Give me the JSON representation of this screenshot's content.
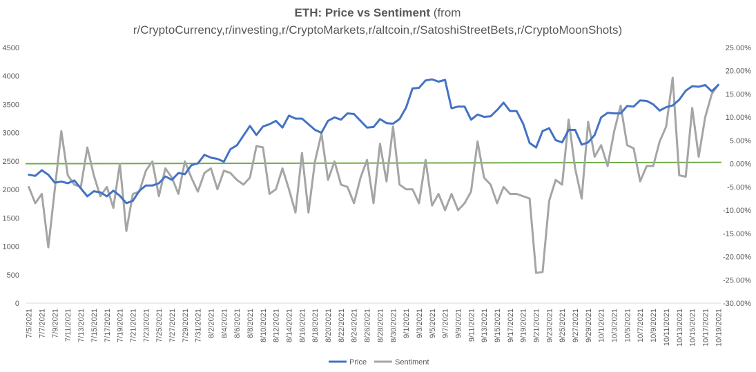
{
  "chart_data": {
    "type": "line",
    "title_bold": "ETH: Price vs Sentiment",
    "title_rest": " (from",
    "title_line2": "r/CryptoCurrency,r/investing,r/CryptoMarkets,r/altcoin,r/SatoshiStreetBets,r/CryptoMoonShots)",
    "y_left": {
      "min": 0,
      "max": 4500,
      "ticks": [
        "0",
        "500",
        "1000",
        "1500",
        "2000",
        "2500",
        "3000",
        "3500",
        "4000",
        "4500"
      ]
    },
    "y_right": {
      "min": -30,
      "max": 25,
      "ticks": [
        "-30.00%",
        "-25.00%",
        "-20.00%",
        "-15.00%",
        "-10.00%",
        "-5.00%",
        "0.00%",
        "5.00%",
        "10.00%",
        "15.00%",
        "20.00%",
        "25.00%"
      ]
    },
    "x_tick_labels": [
      "7/5/2021",
      "7/7/2021",
      "7/9/2021",
      "7/11/2021",
      "7/13/2021",
      "7/15/2021",
      "7/17/2021",
      "7/19/2021",
      "7/21/2021",
      "7/23/2021",
      "7/25/2021",
      "7/27/2021",
      "7/29/2021",
      "7/31/2021",
      "8/2/2021",
      "8/4/2021",
      "8/6/2021",
      "8/8/2021",
      "8/10/2021",
      "8/12/2021",
      "8/14/2021",
      "8/16/2021",
      "8/18/2021",
      "8/20/2021",
      "8/22/2021",
      "8/24/2021",
      "8/26/2021",
      "8/28/2021",
      "8/30/2021",
      "9/1/2021",
      "9/3/2021",
      "9/5/2021",
      "9/7/2021",
      "9/9/2021",
      "9/11/2021",
      "9/13/2021",
      "9/15/2021",
      "9/17/2021",
      "9/19/2021",
      "9/21/2021",
      "9/23/2021",
      "9/25/2021",
      "9/27/2021",
      "9/29/2021",
      "10/1/2021",
      "10/3/2021",
      "10/5/2021",
      "10/7/2021",
      "10/9/2021",
      "10/11/2021",
      "10/13/2021",
      "10/15/2021",
      "10/17/2021",
      "10/19/2021"
    ],
    "zero_line_color": "#70ad47",
    "grid": false,
    "legend_position": "bottom",
    "series": [
      {
        "name": "Price",
        "axis": "left",
        "color": "#4472c4",
        "values": [
          2260,
          2240,
          2340,
          2260,
          2120,
          2140,
          2110,
          2160,
          2020,
          1880,
          1970,
          1950,
          1880,
          1980,
          1890,
          1760,
          1800,
          1980,
          2070,
          2070,
          2110,
          2230,
          2170,
          2290,
          2270,
          2430,
          2460,
          2610,
          2560,
          2540,
          2490,
          2710,
          2780,
          2950,
          3120,
          2960,
          3110,
          3150,
          3210,
          3090,
          3300,
          3250,
          3250,
          3150,
          3050,
          3000,
          3210,
          3270,
          3230,
          3340,
          3330,
          3210,
          3090,
          3100,
          3240,
          3170,
          3160,
          3240,
          3440,
          3780,
          3790,
          3920,
          3940,
          3900,
          3930,
          3430,
          3460,
          3460,
          3230,
          3320,
          3280,
          3290,
          3400,
          3530,
          3380,
          3380,
          3160,
          2820,
          2740,
          3030,
          3080,
          2870,
          2830,
          3050,
          3050,
          2790,
          2830,
          2960,
          3270,
          3350,
          3340,
          3340,
          3470,
          3460,
          3570,
          3560,
          3500,
          3390,
          3450,
          3480,
          3580,
          3740,
          3820,
          3810,
          3840,
          3730,
          3840
        ]
      },
      {
        "name": "Sentiment",
        "axis": "right",
        "color": "#a5a5a5",
        "values": [
          -5,
          -8.5,
          -6.5,
          -18,
          -5.5,
          7,
          -2.5,
          -4.5,
          -5,
          3.5,
          -2.5,
          -7,
          -5,
          -9.5,
          0,
          -14.5,
          -6.5,
          -6,
          -1.5,
          0.5,
          -7,
          -1,
          -3,
          -6.5,
          0.5,
          -3,
          -6,
          -2,
          -1,
          -5.5,
          -1.5,
          -2,
          -3.5,
          -4.5,
          -3,
          3.8,
          3.5,
          -6.5,
          -5.5,
          -1,
          -5.5,
          -10.5,
          2.3,
          -10.5,
          0.5,
          6.5,
          -3.5,
          0.5,
          -4.5,
          -5,
          -8.5,
          -3,
          0.8,
          -8.5,
          4.3,
          -3.8,
          8,
          -4.5,
          -5.5,
          -5.5,
          -8.5,
          0.8,
          -9,
          -6.5,
          -10,
          -6.5,
          -10,
          -8.5,
          -6,
          4.8,
          -3,
          -4.5,
          -8.5,
          -5,
          -6.5,
          -6.5,
          -7,
          -7.5,
          -23.5,
          -23.3,
          -8,
          -3.5,
          -4.5,
          9.5,
          -1,
          -7.5,
          9,
          1.5,
          4,
          -0.5,
          7,
          12.5,
          4,
          3.3,
          -3.8,
          -0.5,
          -0.5,
          4.8,
          8,
          18.5,
          -2.5,
          -2.8,
          12,
          1.5,
          10,
          15,
          17
        ]
      }
    ]
  }
}
